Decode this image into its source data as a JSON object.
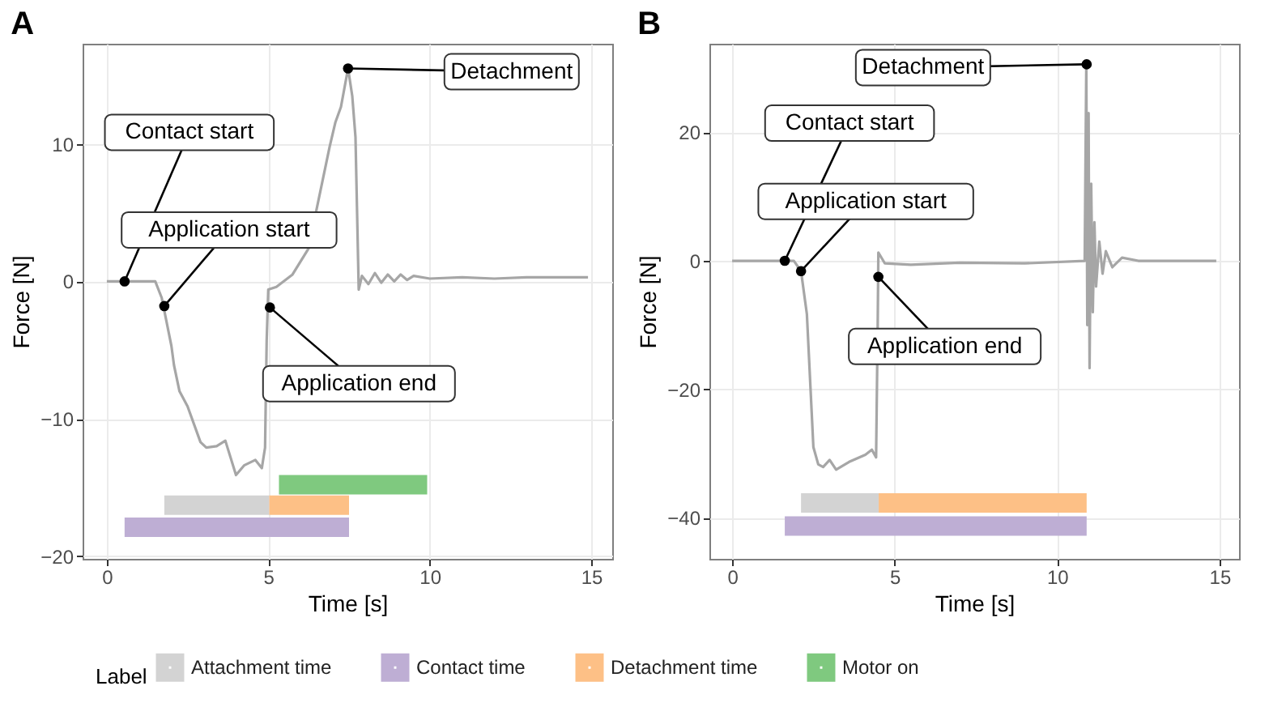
{
  "chart_data": [
    {
      "type": "line",
      "title": "A",
      "xlabel": "Time [s]",
      "ylabel": "Force [N]",
      "legend_title": "Label",
      "legend": "bottom",
      "grid": true,
      "xlim": [
        -0.75,
        15.65
      ],
      "xticks": [
        0,
        5,
        10,
        15
      ],
      "ylim": [
        -20.2,
        17.3
      ],
      "yticks": [
        -20,
        -10,
        0,
        10
      ],
      "series": [
        {
          "color": "#a6a6a6",
          "x": [
            0,
            0.5,
            1.0,
            1.5,
            1.7,
            2.0,
            2.08,
            2.25,
            2.5,
            2.9,
            3.08,
            3.4,
            3.67,
            4.0,
            4.25,
            4.6,
            4.8,
            4.9,
            4.95,
            5.0,
            5.25,
            5.75,
            6.25,
            6.5,
            6.9,
            7.08,
            7.25,
            7.47,
            7.6,
            7.7,
            7.8,
            7.9,
            8.1,
            8.3,
            8.5,
            8.7,
            8.9,
            9.1,
            9.3,
            9.5,
            10,
            11,
            12,
            13,
            14,
            14.9
          ],
          "values": [
            0,
            0,
            0,
            0,
            -1.2,
            -4.7,
            -6.1,
            -8,
            -9.1,
            -11.7,
            -12.1,
            -12,
            -11.6,
            -14.1,
            -13.4,
            -13,
            -13.6,
            -12.1,
            -4.3,
            -0.6,
            -0.4,
            0.5,
            2.4,
            5.3,
            9.8,
            11.6,
            12.7,
            15.5,
            13.5,
            10.5,
            -0.6,
            0.4,
            -0.2,
            0.6,
            -0.1,
            0.5,
            0,
            0.5,
            0.1,
            0.4,
            0.2,
            0.3,
            0.2,
            0.3,
            0.3,
            0.3
          ]
        },
        {
          "name": "Attachment time",
          "color": "#d3d3d3",
          "x": [
            1.78,
            5.03
          ],
          "values": [
            -16.3,
            -16.3
          ]
        },
        {
          "name": "Contact time",
          "color": "#beaed4",
          "x": [
            0.55,
            7.5
          ],
          "values": [
            -17.9,
            -17.9
          ]
        },
        {
          "name": "Detachment time",
          "color": "#fdc086",
          "x": [
            5.03,
            7.5
          ],
          "values": [
            -16.3,
            -16.3
          ]
        },
        {
          "name": "Motor on",
          "color": "#7fc97f",
          "x": [
            5.33,
            9.92
          ],
          "values": [
            -14.8,
            -14.8
          ]
        }
      ],
      "annotations": [
        {
          "text": "Contact start",
          "x": 0.55,
          "y": 0
        },
        {
          "text": "Application start",
          "x": 1.78,
          "y": -1.8
        },
        {
          "text": "Application end",
          "x": 5.05,
          "y": -1.9
        },
        {
          "text": "Detachment",
          "x": 7.47,
          "y": 15.5
        }
      ]
    },
    {
      "type": "line",
      "title": "B",
      "xlabel": "Time [s]",
      "ylabel": "Force [N]",
      "grid": true,
      "xlim": [
        -0.7,
        15.6
      ],
      "xticks": [
        0,
        5,
        10,
        15
      ],
      "ylim": [
        -46.4,
        33.8
      ],
      "yticks": [
        -40,
        -20,
        0,
        20
      ],
      "series": [
        {
          "color": "#a6a6a6",
          "x": [
            0,
            1.0,
            1.9,
            2.12,
            2.3,
            2.5,
            2.65,
            2.8,
            3.0,
            3.2,
            3.6,
            4.1,
            4.3,
            4.43,
            4.48,
            4.5,
            4.7,
            5.5,
            7,
            9,
            10.85,
            10.9,
            10.93,
            10.97,
            11.0,
            11.05,
            11.1,
            11.15,
            11.2,
            11.3,
            11.4,
            11.5,
            11.7,
            12,
            12.5,
            14.9
          ],
          "values": [
            0,
            0,
            0,
            -1.6,
            -8.3,
            -29,
            -31.7,
            -32.1,
            -31,
            -32.5,
            -31.3,
            -30.2,
            -29.4,
            -30.6,
            -10,
            1.3,
            -0.4,
            -0.6,
            -0.3,
            -0.4,
            0,
            30.6,
            -10,
            23,
            -16.7,
            12,
            -8,
            6,
            -4,
            3,
            -2,
            1.5,
            -1,
            0.5,
            0,
            0
          ]
        },
        {
          "color": "#d3d3d3",
          "x": [
            2.12,
            4.51
          ],
          "values": [
            -37.7,
            -37.7
          ]
        },
        {
          "color": "#beaed4",
          "x": [
            1.62,
            10.91
          ],
          "values": [
            -41.3,
            -41.3
          ]
        },
        {
          "color": "#fdc086",
          "x": [
            4.51,
            10.91
          ],
          "values": [
            -37.7,
            -37.7
          ]
        }
      ],
      "annotations": [
        {
          "text": "Contact start",
          "x": 1.62,
          "y": 0
        },
        {
          "text": "Application start",
          "x": 2.12,
          "y": -1.6
        },
        {
          "text": "Application end",
          "x": 4.5,
          "y": -2.5
        },
        {
          "text": "Detachment",
          "x": 10.91,
          "y": 30.6
        }
      ]
    }
  ]
}
